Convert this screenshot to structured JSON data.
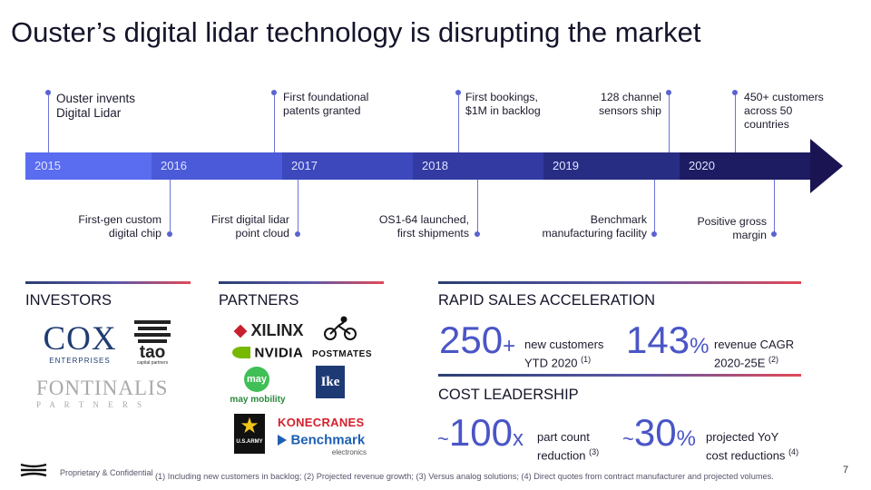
{
  "title": "Ouster’s digital lidar technology is disrupting the market",
  "timeline": {
    "years": [
      "2015",
      "2016",
      "2017",
      "2018",
      "2019",
      "2020"
    ],
    "events_above": [
      {
        "text": "Ouster invents\nDigital Lidar"
      },
      {
        "text": "First foundational\npatents granted"
      },
      {
        "text": "First bookings,\n$1M in backlog"
      },
      {
        "text": "128 channel\nsensors ship"
      },
      {
        "text": "450+ customers\nacross 50\ncountries"
      }
    ],
    "events_below": [
      {
        "text": "First-gen custom\ndigital chip"
      },
      {
        "text": "First digital lidar\npoint cloud"
      },
      {
        "text": "OS1-64 launched,\nfirst shipments"
      },
      {
        "text": "Benchmark\nmanufacturing facility"
      },
      {
        "text": "Positive gross\nmargin"
      }
    ]
  },
  "investors": {
    "heading": "INVESTORS",
    "logos": {
      "cox": {
        "name": "COX",
        "sub": "ENTERPRISES"
      },
      "tao": {
        "name": "tao",
        "sub": "capital partners"
      },
      "fontinalis": {
        "name": "FONTINALIS",
        "sub": "P A R T N E R S"
      }
    }
  },
  "partners": {
    "heading": "PARTNERS",
    "logos": {
      "xilinx": "XILINX",
      "nvidia": "NVIDIA",
      "postmates": "POSTMATES",
      "maymobility": "may mobility",
      "may_badge": "may",
      "ike": "Ike",
      "konecranes": "KONECRANES",
      "benchmark": "Benchmark",
      "benchmark_sub": "electronics",
      "usarmy": "U.S.ARMY"
    }
  },
  "sales": {
    "heading": "RAPID SALES ACCELERATION",
    "stat1": {
      "value": "250",
      "suffix": "+",
      "label": "new customers\nYTD 2020",
      "note": "(1)"
    },
    "stat2": {
      "value": "143",
      "suffix": "%",
      "label": "revenue CAGR\n2020-25E",
      "note": "(2)"
    }
  },
  "cost": {
    "heading": "COST LEADERSHIP",
    "stat1": {
      "prefix": "~",
      "value": "100",
      "suffix": "x",
      "label": "part count\nreduction",
      "note": "(3)"
    },
    "stat2": {
      "prefix": "~",
      "value": "30",
      "suffix": "%",
      "label": "projected YoY\ncost reductions",
      "note": "(4)"
    }
  },
  "footer": {
    "confidential": "Proprietary  & Confidential",
    "footnote": "(1) Including new customers in backlog; (2) Projected revenue growth; (3) Versus analog solutions; (4) Direct quotes from contract manufacturer and projected volumes.",
    "page_number": "7"
  },
  "colors": {
    "accent": "#4a55c6",
    "timeline_start": "#5b6cf0",
    "timeline_end": "#1a1552",
    "line_red": "#e14a57"
  }
}
